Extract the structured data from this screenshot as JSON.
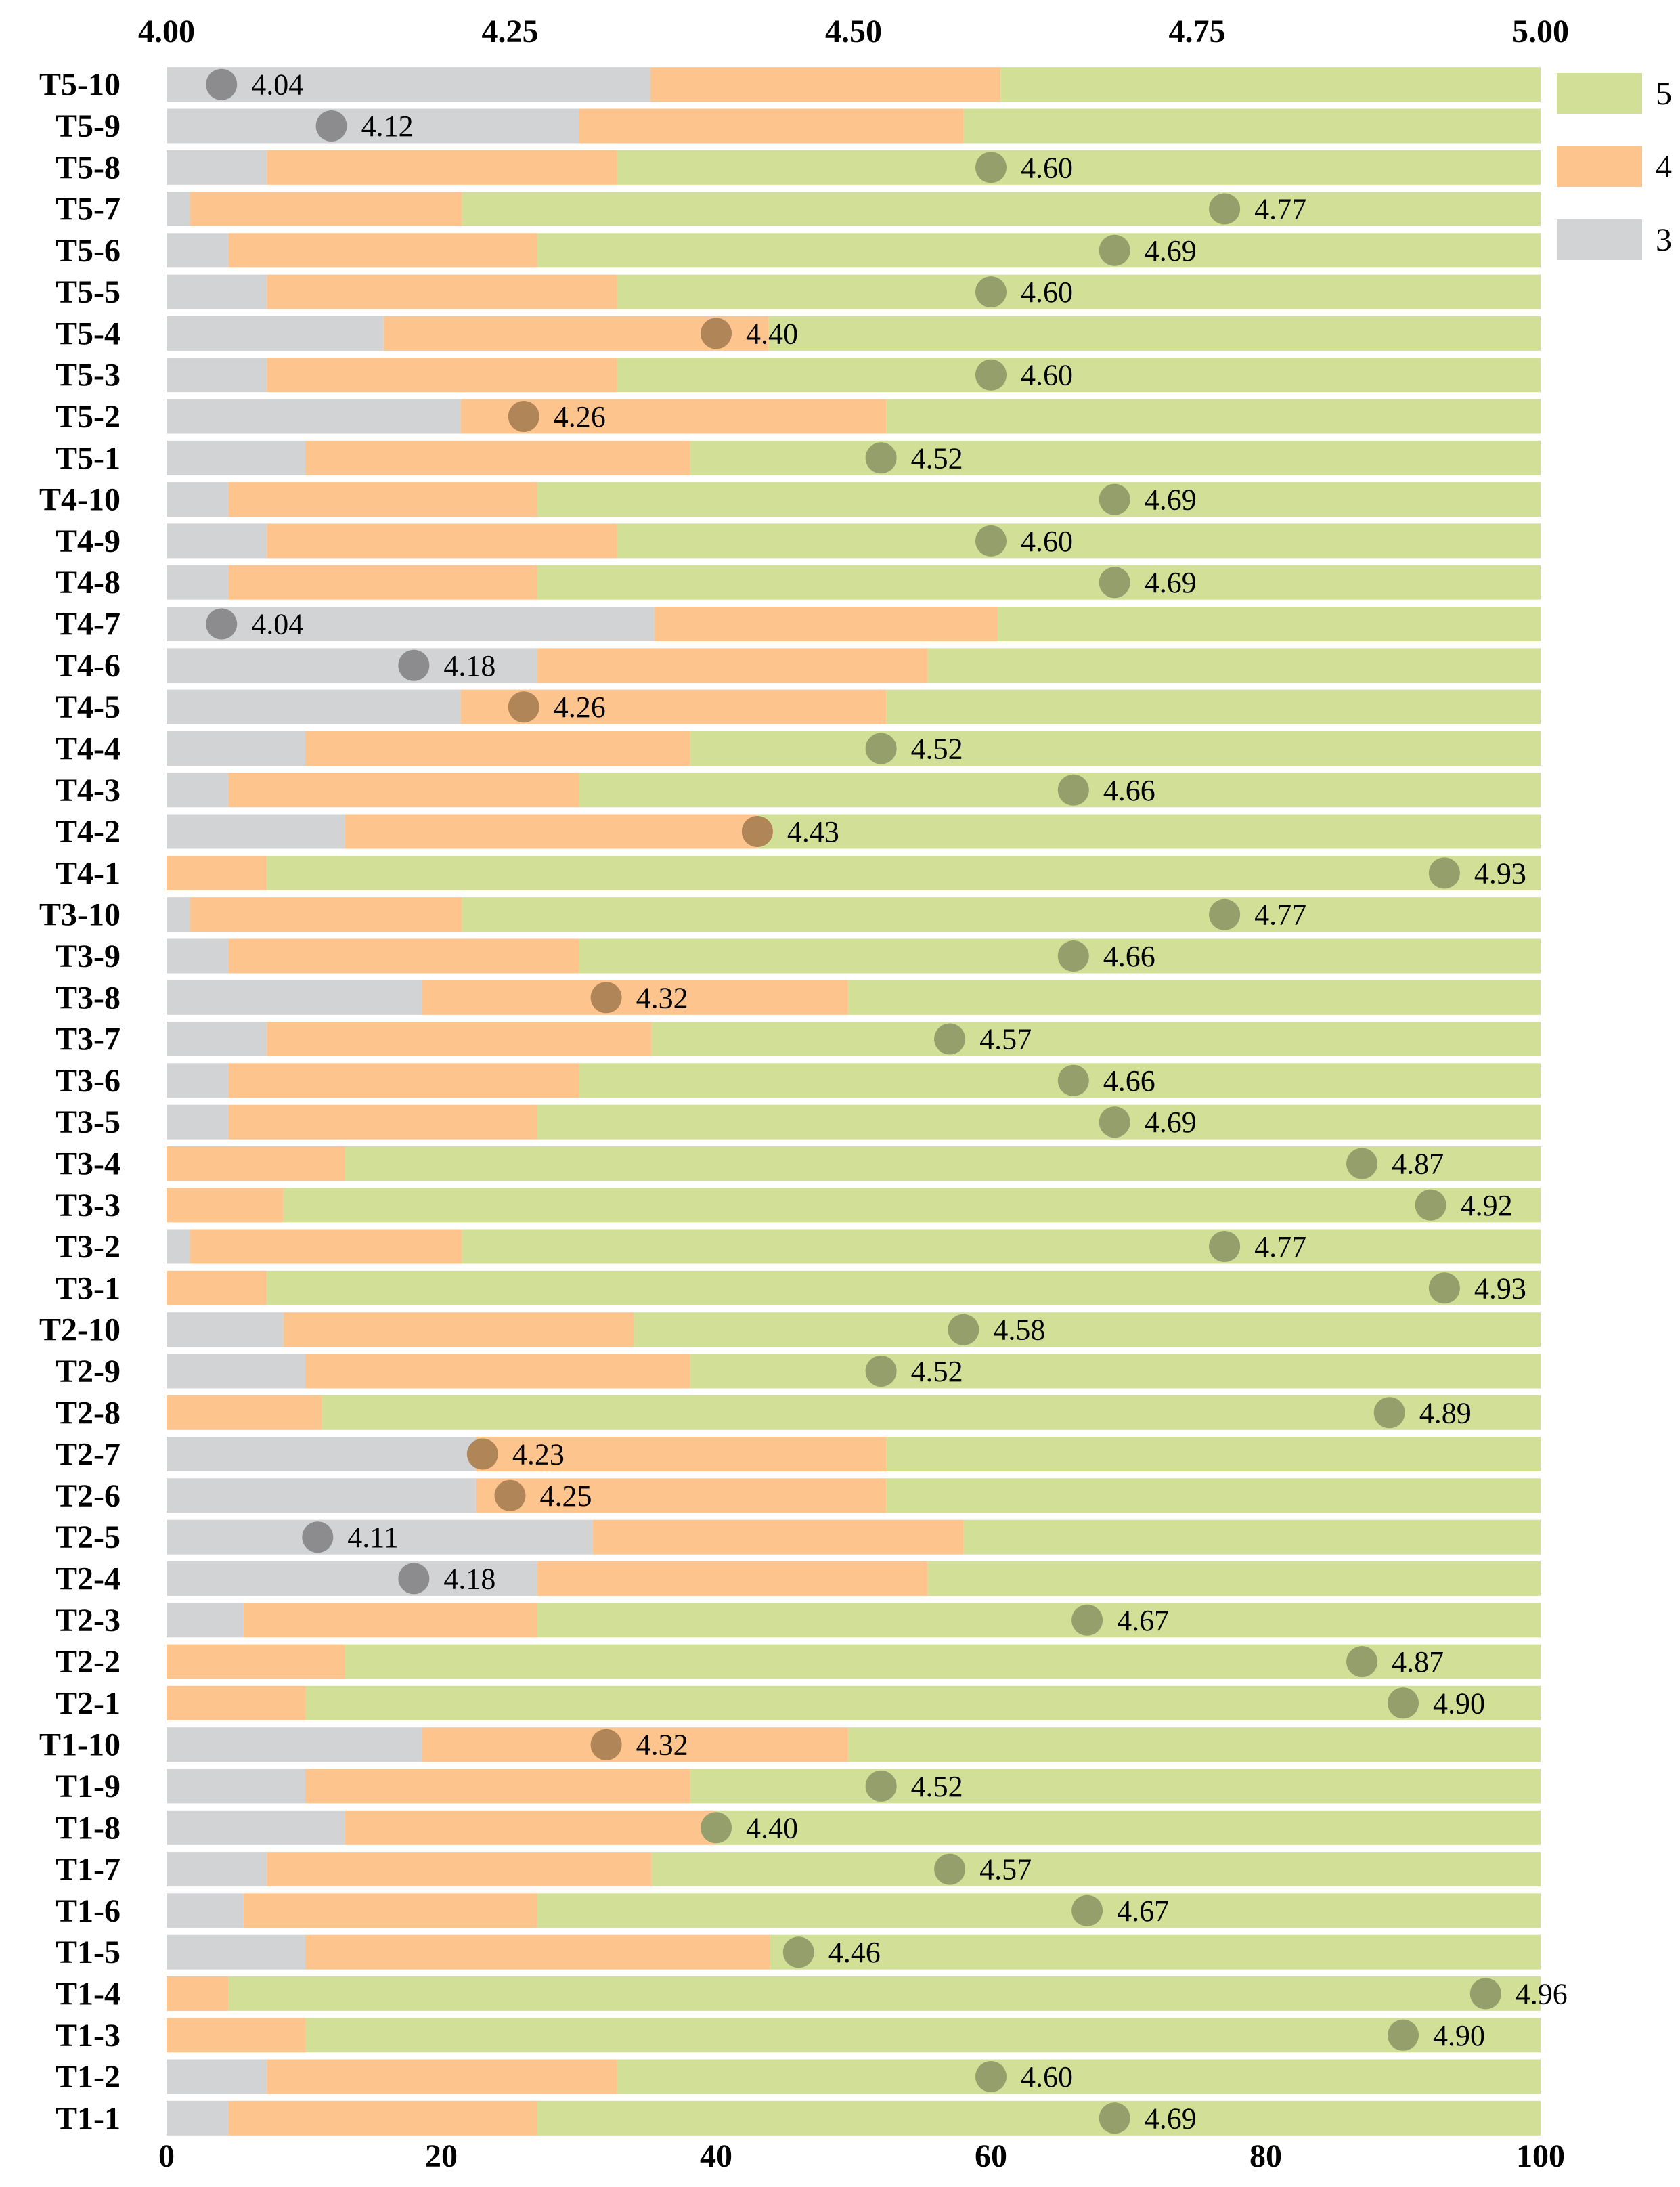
{
  "chart_data": {
    "type": "bar",
    "stacked": true,
    "orientation": "horizontal",
    "title": "",
    "xlabel": "",
    "ylabel": "",
    "xlim": [
      0,
      100
    ],
    "top_axis": {
      "lim": [
        4.0,
        5.0
      ],
      "ticks": [
        "4.00",
        "4.25",
        "4.50",
        "4.75",
        "5.00"
      ]
    },
    "bottom_axis_ticks": [
      "0",
      "20",
      "40",
      "60",
      "80",
      "100"
    ],
    "legend": {
      "placement": "top-right",
      "entries": [
        "5",
        "4",
        "3"
      ]
    },
    "colors": {
      "3": "#d2d3d5",
      "4": "#fdc48e",
      "5": "#d1df97"
    },
    "marker_colors": {
      "low": "#8c8c8e",
      "mid": "#b08658",
      "high": "#959f6c"
    },
    "categories": [
      "T5-10",
      "T5-9",
      "T5-8",
      "T5-7",
      "T5-6",
      "T5-5",
      "T5-4",
      "T5-3",
      "T5-2",
      "T5-1",
      "T4-10",
      "T4-9",
      "T4-8",
      "T4-7",
      "T4-6",
      "T4-5",
      "T4-4",
      "T4-3",
      "T4-2",
      "T4-1",
      "T3-10",
      "T3-9",
      "T3-8",
      "T3-7",
      "T3-6",
      "T3-5",
      "T3-4",
      "T3-3",
      "T3-2",
      "T3-1",
      "T2-10",
      "T2-9",
      "T2-8",
      "T2-7",
      "T2-6",
      "T2-5",
      "T2-4",
      "T2-3",
      "T2-2",
      "T2-1",
      "T1-10",
      "T1-9",
      "T1-8",
      "T1-7",
      "T1-6",
      "T1-5",
      "T1-4",
      "T1-3",
      "T1-2",
      "T1-1"
    ],
    "series": [
      {
        "name": "3",
        "values": [
          35.2,
          30,
          7.3,
          1.7,
          4.5,
          7.3,
          15.8,
          7.3,
          21.4,
          10.1,
          4.5,
          7.3,
          4.5,
          35.5,
          27,
          21.4,
          10.1,
          4.5,
          13,
          0,
          1.7,
          4.5,
          18.6,
          7.3,
          4.5,
          4.5,
          0,
          0,
          1.7,
          0,
          8.5,
          10.1,
          0,
          22.5,
          22.5,
          31,
          27,
          5.6,
          0,
          0,
          18.6,
          10.1,
          13,
          7.3,
          5.6,
          10.1,
          0,
          0,
          7.3,
          4.5
        ]
      },
      {
        "name": "4",
        "values": [
          25.5,
          28,
          25.5,
          19.8,
          22.5,
          25.5,
          28,
          25.5,
          31,
          28,
          22.5,
          25.5,
          22.5,
          25,
          28.4,
          31,
          28,
          25.5,
          30,
          7.3,
          19.8,
          25.5,
          31,
          28,
          25.5,
          22.5,
          13,
          8.5,
          19.8,
          7.3,
          25.5,
          28,
          11.3,
          29.9,
          29.9,
          27,
          28.4,
          21.4,
          13,
          10.1,
          31,
          28,
          27,
          28,
          21.4,
          33.8,
          4.5,
          10.1,
          25.5,
          22.5
        ]
      },
      {
        "name": "5",
        "values": [
          39.3,
          42,
          67.2,
          78.5,
          73,
          67.2,
          56.2,
          67.2,
          47.6,
          61.9,
          73,
          67.2,
          73,
          39.5,
          44.6,
          47.6,
          61.9,
          70,
          57,
          92.7,
          78.5,
          70,
          50.4,
          64.7,
          70,
          73,
          87,
          91.5,
          78.5,
          92.7,
          66,
          61.9,
          88.7,
          47.6,
          47.6,
          42,
          44.6,
          73,
          87,
          89.9,
          50.4,
          61.9,
          60,
          64.7,
          73,
          56.1,
          95.5,
          89.9,
          67.2,
          73
        ]
      }
    ],
    "means": [
      4.04,
      4.12,
      4.6,
      4.77,
      4.69,
      4.6,
      4.4,
      4.6,
      4.26,
      4.52,
      4.69,
      4.6,
      4.69,
      4.04,
      4.18,
      4.26,
      4.52,
      4.66,
      4.43,
      4.93,
      4.77,
      4.66,
      4.32,
      4.57,
      4.66,
      4.69,
      4.87,
      4.92,
      4.77,
      4.93,
      4.58,
      4.52,
      4.89,
      4.23,
      4.25,
      4.11,
      4.18,
      4.67,
      4.87,
      4.9,
      4.32,
      4.52,
      4.4,
      4.57,
      4.67,
      4.46,
      4.96,
      4.9,
      4.6,
      4.69
    ],
    "mean_labels": [
      "4.04",
      "4.12",
      "4.60",
      "4.77",
      "4.69",
      "4.60",
      "4.40",
      "4.60",
      "4.26",
      "4.52",
      "4.69",
      "4.60",
      "4.69",
      "4.04",
      "4.18",
      "4.26",
      "4.52",
      "4.66",
      "4.43",
      "4.93",
      "4.77",
      "4.66",
      "4.32",
      "4.57",
      "4.66",
      "4.69",
      "4.87",
      "4.92",
      "4.77",
      "4.93",
      "4.58",
      "4.52",
      "4.89",
      "4.23",
      "4.25",
      "4.11",
      "4.18",
      "4.67",
      "4.87",
      "4.90",
      "4.32",
      "4.52",
      "4.40",
      "4.57",
      "4.67",
      "4.46",
      "4.96",
      "4.90",
      "4.60",
      "4.69"
    ]
  }
}
